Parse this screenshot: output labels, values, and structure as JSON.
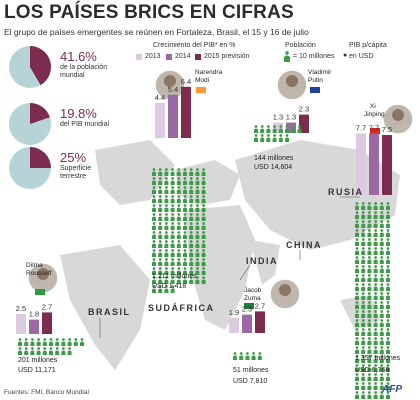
{
  "header": {
    "title": "LOS PAÍSES BRICS EN CIFRAS",
    "subtitle": "El grupo de países emergentes se reúnen en Fortaleza, Brasil, el 15 y 16 de julio"
  },
  "summary_stats": [
    {
      "value": "41.6%",
      "label_lines": [
        "de la población",
        "mundial"
      ],
      "fraction": 0.416
    },
    {
      "value": "19.8%",
      "label_lines": [
        "del PIB mundial"
      ],
      "fraction": 0.198
    },
    {
      "value": "25%",
      "label_lines": [
        "Superficie",
        "terrestre"
      ],
      "fraction": 0.25
    }
  ],
  "columns": {
    "growth": "Crecimiento del PIB*  en %",
    "population": "Población",
    "population_unit": "= 10 millones",
    "gdp_pc": "PIB p/cápita",
    "gdp_pc_unit": "en USD"
  },
  "legend": {
    "y2013": "2013",
    "y2014": "2014",
    "y2015": "2015 previsión"
  },
  "colors": {
    "y2013": "#dccbe0",
    "y2014": "#9b68a3",
    "y2015": "#7b2c4f",
    "pie_base": "#b6d4d8",
    "pie_slice": "#7b2c4f",
    "person": "#3f9a4a",
    "map_land": "#d8d8d8",
    "title": "#2b2b2b"
  },
  "icons": {
    "person": "green-person-icon",
    "coin": "coin-icon"
  },
  "countries": [
    {
      "key": "brasil",
      "country": "BRASIL",
      "leader_lines": [
        "Dilma",
        "Rousseff"
      ],
      "flag": "brazil-flag-icon",
      "values_label": [
        "2.5",
        "1.8",
        "2.7"
      ],
      "population": "201 millones",
      "gdp_pc": "USD 11,171"
    },
    {
      "key": "india",
      "country": "INDIA",
      "leader_lines": [
        "Narendra",
        "Modi"
      ],
      "flag": "india-flag-icon",
      "values_label": [
        "4.4",
        "5.4",
        "6.4"
      ],
      "population": "1,211 millones",
      "gdp_pc": "USD 1,418"
    },
    {
      "key": "rusia",
      "country": "RUSIA",
      "leader_lines": [
        "Vladimir",
        "Putin"
      ],
      "flag": "russia-flag-icon",
      "values_label": [
        "1.3",
        "1.3",
        "2.3"
      ],
      "population": "144 millones",
      "gdp_pc": "USD 14,604"
    },
    {
      "key": "china",
      "country": "CHINA",
      "leader_lines": [
        "Xi",
        "Jinping"
      ],
      "flag": "china-flag-icon",
      "values_label": [
        "7.7",
        "7.7",
        "7.5"
      ],
      "population": "1,357 millones",
      "gdp_pc": "USD 6,768"
    },
    {
      "key": "sudafrica",
      "country": "SUDÁFRICA",
      "leader_lines": [
        "Jacob",
        "Zuma"
      ],
      "flag": "south-africa-flag-icon",
      "values_label": [
        "1.9",
        "2.3",
        "2.7"
      ],
      "population": "51 millones",
      "gdp_pc": "USD 7,810"
    }
  ],
  "chart_data": {
    "type": "bar",
    "title": "Crecimiento del PIB*  en %",
    "categories": [
      "Brasil",
      "India",
      "Rusia",
      "China",
      "Sudáfrica"
    ],
    "series": [
      {
        "name": "2013",
        "values": [
          2.5,
          4.4,
          1.3,
          7.7,
          1.9
        ]
      },
      {
        "name": "2014",
        "values": [
          1.8,
          5.4,
          1.3,
          7.7,
          2.3
        ]
      },
      {
        "name": "2015 previsión",
        "values": [
          2.7,
          6.4,
          2.3,
          7.5,
          2.7
        ]
      }
    ],
    "population_millions": [
      201,
      1211,
      144,
      1357,
      51
    ],
    "gdp_per_capita_usd": [
      11171,
      1418,
      14604,
      6768,
      7810
    ],
    "world_share": {
      "population_pct": 41.6,
      "gdp_pct": 19.8,
      "land_area_pct": 25
    }
  },
  "footer": {
    "source": "Fuentes: FMI, Banco Mundial",
    "credit": "AFP"
  }
}
